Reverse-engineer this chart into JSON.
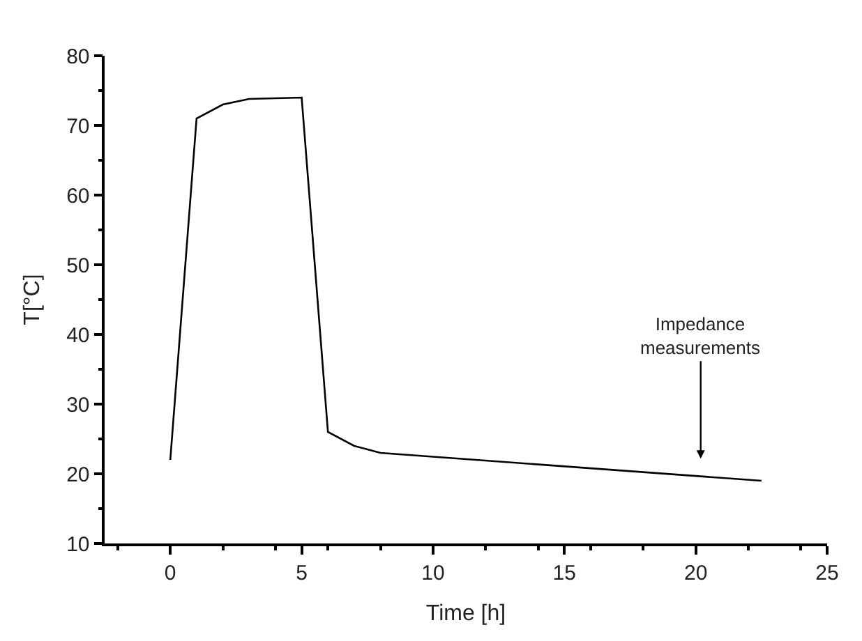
{
  "chart_data": {
    "type": "line",
    "xlabel": "Time [h]",
    "ylabel": "T[°C]",
    "x": [
      0,
      1,
      2,
      3,
      5,
      6,
      7,
      8,
      22.5
    ],
    "series": [
      {
        "color": "#000000",
        "values": [
          22,
          71,
          73,
          73.8,
          74,
          26,
          24,
          23,
          19
        ]
      }
    ],
    "xlim": [
      -2.5,
      25
    ],
    "xticks": [
      0,
      5,
      10,
      15,
      20,
      25
    ],
    "ylim": [
      10,
      80
    ],
    "yticks": [
      10,
      20,
      30,
      40,
      50,
      60,
      70,
      80
    ],
    "marker": "none",
    "line_style": "solid",
    "annotations": [
      "Impedance\nmeasurements"
    ]
  }
}
